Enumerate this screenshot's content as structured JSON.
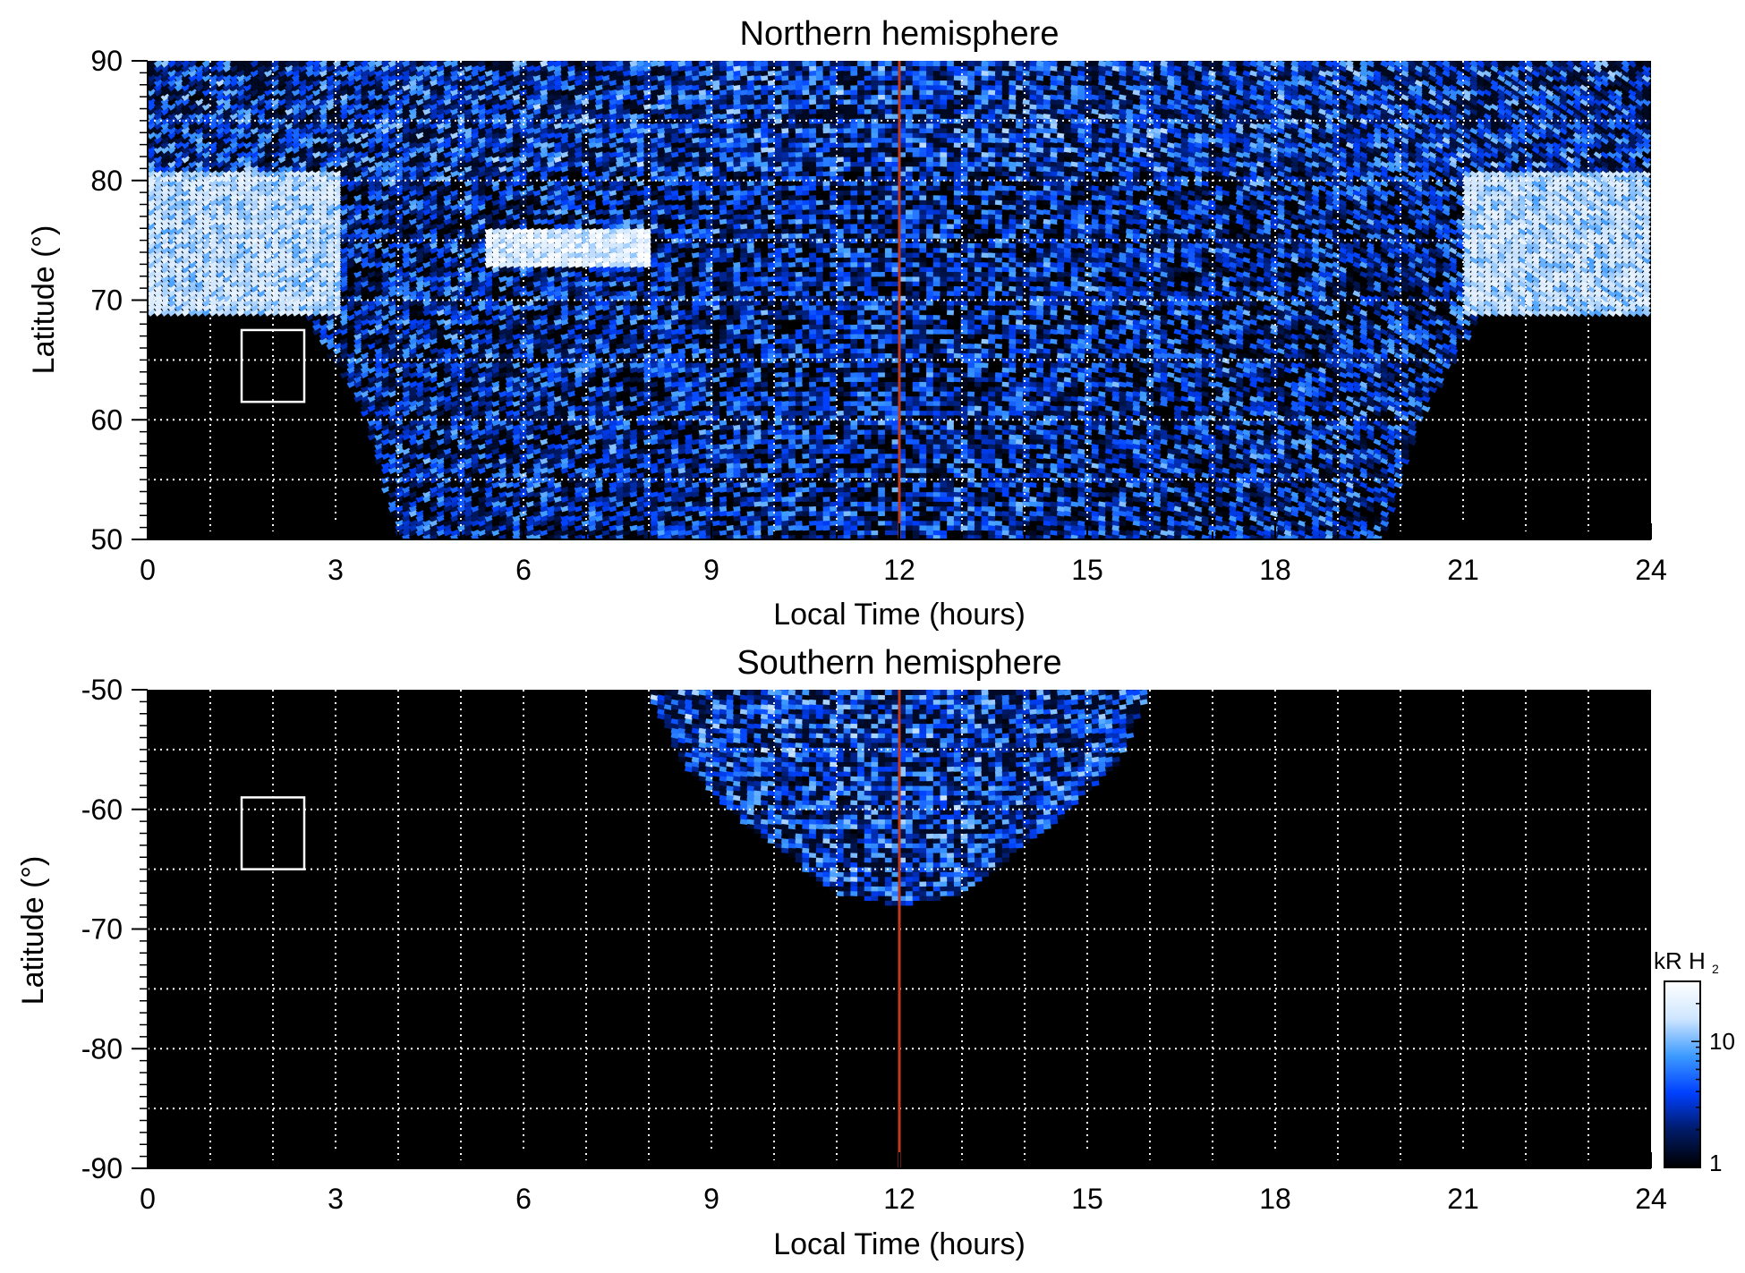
{
  "chart_data": [
    {
      "type": "heatmap",
      "title": "Northern hemisphere",
      "xlabel": "Local Time (hours)",
      "ylabel": "Latitude (°)",
      "xlim": [
        0,
        24
      ],
      "ylim": [
        50,
        90
      ],
      "xticks": [
        "0",
        "3",
        "6",
        "9",
        "12",
        "15",
        "18",
        "21",
        "24"
      ],
      "yticks": [
        "50",
        "60",
        "70",
        "80",
        "90"
      ],
      "grid": true,
      "grid_x_step": 1,
      "grid_y_step": 5,
      "noon_line_x": 12,
      "box": {
        "x0": 1.5,
        "x1": 2.5,
        "y0": 61.5,
        "y1": 67.5
      },
      "coverage_boundary": [
        [
          0,
          69
        ],
        [
          2.5,
          69
        ],
        [
          3.5,
          60
        ],
        [
          4,
          50
        ],
        [
          19.7,
          50
        ],
        [
          20.3,
          60
        ],
        [
          21.3,
          69
        ],
        [
          24,
          69
        ]
      ],
      "bright_regions": [
        {
          "x0": 0,
          "x1": 3,
          "y0": 69,
          "y1": 81,
          "level": 18
        },
        {
          "x0": 21,
          "x1": 24,
          "y0": 69,
          "y1": 81,
          "level": 18
        },
        {
          "x0": 5.3,
          "x1": 8,
          "y0": 73,
          "y1": 76,
          "level": 25
        }
      ]
    },
    {
      "type": "heatmap",
      "title": "Southern hemisphere",
      "xlabel": "Local Time (hours)",
      "ylabel": "Latitude (°)",
      "xlim": [
        0,
        24
      ],
      "ylim": [
        -90,
        -50
      ],
      "xticks": [
        "0",
        "3",
        "6",
        "9",
        "12",
        "15",
        "18",
        "21",
        "24"
      ],
      "yticks": [
        "-90",
        "-80",
        "-70",
        "-60",
        "-50"
      ],
      "grid": true,
      "grid_x_step": 1,
      "grid_y_step": 5,
      "noon_line_x": 12,
      "box": {
        "x0": 1.5,
        "x1": 2.5,
        "y0": -65,
        "y1": -59
      },
      "coverage_boundary": [
        [
          8,
          -50
        ],
        [
          8.5,
          -56
        ],
        [
          9.5,
          -61
        ],
        [
          11,
          -67
        ],
        [
          12,
          -68
        ],
        [
          13,
          -67
        ],
        [
          14.5,
          -61
        ],
        [
          15.5,
          -56
        ],
        [
          16,
          -50
        ]
      ]
    }
  ],
  "colorbar": {
    "label_main": "kR H",
    "label_sub": "2",
    "tick_labels": [
      "1",
      "10"
    ],
    "range": [
      1,
      30
    ],
    "scale": "log",
    "colors": [
      "#000000",
      "#001a66",
      "#0040ff",
      "#3d9bff",
      "#cfe6ff",
      "#ffffff"
    ]
  },
  "colors": {
    "noon_line": "#c0391b",
    "grid": "#ffffff",
    "box": "#ffffff",
    "background": "#000000"
  }
}
